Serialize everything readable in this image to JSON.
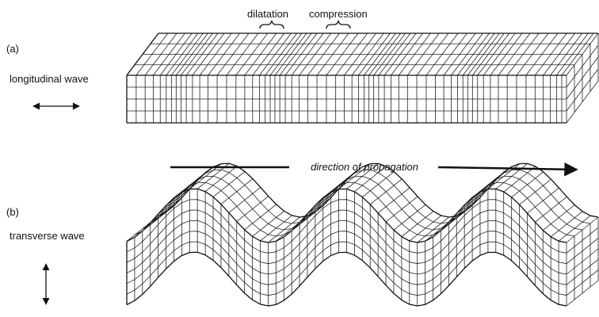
{
  "panels": [
    {
      "label": "(a)",
      "wave": "longitudinal wave",
      "annotations": [
        "dilatation",
        "compression"
      ]
    },
    {
      "label": "(b)",
      "wave": "transverse wave"
    }
  ],
  "propagation": "direction of propagation"
}
